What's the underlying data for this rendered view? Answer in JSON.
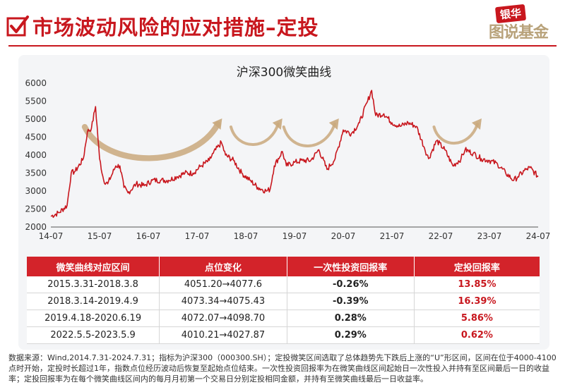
{
  "header": {
    "title": "市场波动风险的应对措施–定投",
    "logo_badge": "银华",
    "logo_slogan": "图说基金"
  },
  "chart_data": {
    "type": "line",
    "title": "沪深300微笑曲线",
    "ylim": [
      2000,
      6000
    ],
    "yticks": [
      2000,
      2500,
      3000,
      3500,
      4000,
      4500,
      5000,
      5500,
      6000
    ],
    "xticks": [
      "14-07",
      "15-07",
      "16-07",
      "17-07",
      "18-07",
      "19-07",
      "20-07",
      "21-07",
      "22-07",
      "23-07",
      "24-07"
    ],
    "x_start": "2014-07",
    "x_end": "2024-07",
    "grid": false,
    "line_color": "#c8171e",
    "smile_color": "#c9a87c",
    "series": [
      {
        "x": [
          "2014-07",
          "2014-09",
          "2014-11",
          "2014-12",
          "2015-01",
          "2015-03",
          "2015-04",
          "2015-05",
          "2015-06",
          "2015-07",
          "2015-08",
          "2015-09",
          "2015-11",
          "2015-12",
          "2016-01",
          "2016-02",
          "2016-04",
          "2016-06",
          "2016-08",
          "2016-10",
          "2016-12",
          "2017-02",
          "2017-04",
          "2017-06",
          "2017-08",
          "2017-10",
          "2017-11",
          "2018-01",
          "2018-02",
          "2018-04",
          "2018-06",
          "2018-08",
          "2018-10",
          "2018-12",
          "2019-01",
          "2019-02",
          "2019-04",
          "2019-05",
          "2019-07",
          "2019-09",
          "2019-11",
          "2020-01",
          "2020-03",
          "2020-05",
          "2020-07",
          "2020-09",
          "2020-11",
          "2021-01",
          "2021-02",
          "2021-03",
          "2021-05",
          "2021-07",
          "2021-09",
          "2021-11",
          "2022-01",
          "2022-03",
          "2022-04",
          "2022-06",
          "2022-08",
          "2022-10",
          "2022-12",
          "2023-01",
          "2023-03",
          "2023-05",
          "2023-07",
          "2023-09",
          "2023-11",
          "2024-01",
          "2024-02",
          "2024-04",
          "2024-05",
          "2024-07"
        ],
        "values": [
          2300,
          2400,
          2600,
          3500,
          3550,
          3900,
          4650,
          4750,
          5350,
          3900,
          3300,
          3200,
          3700,
          3700,
          3100,
          2950,
          3200,
          3150,
          3300,
          3300,
          3300,
          3400,
          3500,
          3500,
          3700,
          3850,
          4050,
          4350,
          4000,
          3850,
          3500,
          3300,
          3100,
          3000,
          3050,
          3700,
          4100,
          3700,
          3800,
          3850,
          3850,
          4150,
          3600,
          3900,
          4700,
          4600,
          4900,
          5500,
          5800,
          5100,
          5150,
          4900,
          4800,
          4900,
          4800,
          4200,
          3900,
          4400,
          4150,
          3700,
          3900,
          4150,
          4050,
          3900,
          3850,
          3750,
          3500,
          3300,
          3400,
          3600,
          3650,
          3400
        ]
      }
    ],
    "smiles": [
      {
        "start": "2015-03",
        "end": "2018-03"
      },
      {
        "start": "2018-03",
        "end": "2019-04"
      },
      {
        "start": "2019-04",
        "end": "2020-06"
      },
      {
        "start": "2022-05",
        "end": "2023-05"
      }
    ]
  },
  "table": {
    "headers": [
      "微笑曲线对应区间",
      "点位变化",
      "一次性投资回报率",
      "定投回报率"
    ],
    "rows": [
      [
        "2015.3.31-2018.3.8",
        "4051.20→4077.6",
        "-0.26%",
        "13.85%"
      ],
      [
        "2018.3.14-2019.4.9",
        "4073.34→4075.43",
        "-0.39%",
        "16.39%"
      ],
      [
        "2019.4.18-2020.6.19",
        "4072.07→4098.70",
        "0.28%",
        "5.86%"
      ],
      [
        "2022.5.5-2023.5.9",
        "4010.21→4027.87",
        "0.29%",
        "0.62%"
      ]
    ]
  },
  "footnote": "数据来源：Wind,2014.7.31-2024.7.31；指标为沪深300（000300.SH）；定投微笑区间选取了总体趋势先下跌后上涨的“U”形区间，区间在位于4000-4100点时开始，定投时长超过1年，指数点位经历波动后恢复至起始点位结束。一次性投资回报率为在微笑曲线区间起始日一次性投入并持有至区间最后一日的收益率；定投回报率为在每个微笑曲线区间内的每月月初第一个交易日分别定投相同金额，并持有至微笑曲线最后一日收益率。"
}
